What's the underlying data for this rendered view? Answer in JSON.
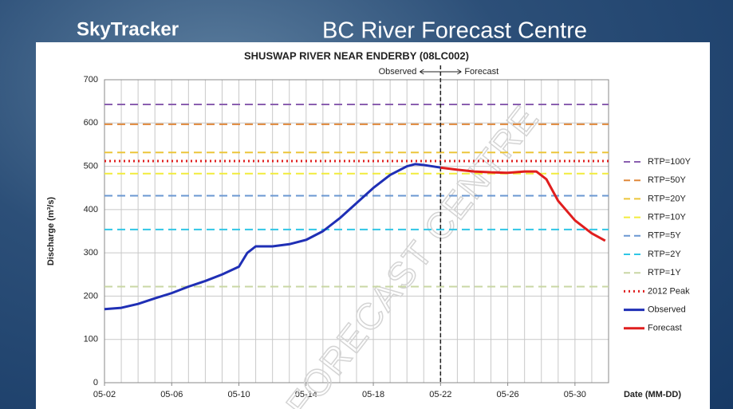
{
  "header": {
    "brand": "SkyTracker",
    "channel_title": "BC River Forecast Centre"
  },
  "chart_data": {
    "type": "line",
    "title": "SHUSWAP RIVER NEAR ENDERBY (08LC002)",
    "ylabel": "Discharge (m³/s)",
    "xlabel": "Date (MM-DD)",
    "watermark": "FORECAST CENTRE",
    "divider": {
      "x": 22,
      "left_label": "Observed",
      "right_label": "Forecast"
    },
    "xlim": [
      2,
      32
    ],
    "ylim": [
      0,
      700
    ],
    "xticks": [
      {
        "value": 2,
        "label": "05-02"
      },
      {
        "value": 6,
        "label": "05-06"
      },
      {
        "value": 10,
        "label": "05-10"
      },
      {
        "value": 14,
        "label": "05-14"
      },
      {
        "value": 18,
        "label": "05-18"
      },
      {
        "value": 22,
        "label": "05-22"
      },
      {
        "value": 26,
        "label": "05-26"
      },
      {
        "value": 30,
        "label": "05-30"
      }
    ],
    "yticks": [
      0,
      100,
      200,
      300,
      400,
      500,
      600,
      700
    ],
    "grid": true,
    "reference_lines": [
      {
        "name": "RTP=100Y",
        "value": 643,
        "color": "#8a5fb0",
        "style": "dashed"
      },
      {
        "name": "RTP=50Y",
        "value": 597,
        "color": "#e0883a",
        "style": "dashed"
      },
      {
        "name": "RTP=20Y",
        "value": 532,
        "color": "#ecc53a",
        "style": "dashed"
      },
      {
        "name": "RTP=10Y",
        "value": 483,
        "color": "#f2ec3c",
        "style": "dashed"
      },
      {
        "name": "RTP=5Y",
        "value": 432,
        "color": "#6a97d2",
        "style": "dashed"
      },
      {
        "name": "RTP=2Y",
        "value": 354,
        "color": "#30c6e6",
        "style": "dashed"
      },
      {
        "name": "RTP=1Y",
        "value": 222,
        "color": "#c9d7a4",
        "style": "dashed"
      },
      {
        "name": "2012 Peak",
        "value": 512,
        "color": "#e02020",
        "style": "dotted"
      }
    ],
    "series": [
      {
        "name": "Observed",
        "color": "#1f2fb5",
        "x": [
          2,
          3,
          4,
          5,
          6,
          7,
          8,
          9,
          10,
          10.5,
          11,
          12,
          13,
          14,
          15,
          16,
          17,
          18,
          19,
          20,
          20.5,
          21,
          22
        ],
        "values": [
          170,
          173,
          182,
          195,
          207,
          222,
          235,
          250,
          268,
          300,
          315,
          315,
          320,
          330,
          350,
          380,
          415,
          450,
          480,
          500,
          505,
          503,
          497
        ]
      },
      {
        "name": "Forecast",
        "color": "#e01e1e",
        "x": [
          22,
          23,
          24,
          25,
          26,
          27,
          27.7,
          28.3,
          29,
          30,
          31,
          31.8
        ],
        "values": [
          497,
          492,
          488,
          486,
          485,
          488,
          488,
          470,
          420,
          375,
          345,
          328
        ]
      }
    ]
  }
}
